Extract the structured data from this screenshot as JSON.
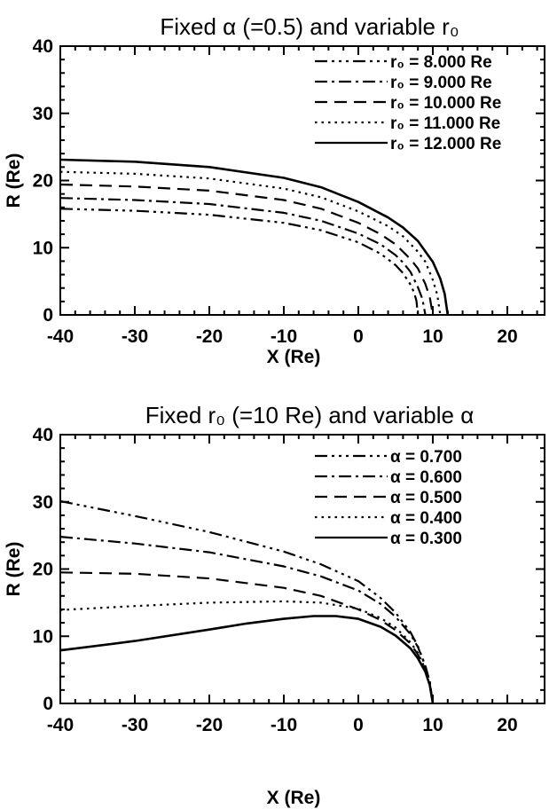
{
  "chart_data": [
    {
      "type": "line",
      "title": "Fixed α (=0.5) and variable r₀",
      "xlabel": "X (Re)",
      "ylabel": "R (Re)",
      "xlim": [
        -40,
        25
      ],
      "ylim": [
        0,
        40
      ],
      "xticks": [
        "-40",
        "-30",
        "-20",
        "-10",
        "0",
        "10",
        "20"
      ],
      "yticks": [
        "0",
        "10",
        "20",
        "30",
        "40"
      ],
      "legend_position": "top-right",
      "series": [
        {
          "name": "r₀ =  8.000 Re",
          "dash": "dash-dot-dot-dot",
          "x": [
            -40,
            -30,
            -20,
            -10,
            -5,
            0,
            3,
            5,
            6,
            7,
            7.5,
            7.8,
            8
          ],
          "y": [
            15.8,
            15.5,
            14.9,
            13.7,
            12.6,
            10.8,
            9.1,
            7.4,
            6.2,
            4.5,
            3.3,
            2.1,
            0
          ]
        },
        {
          "name": "r₀ =  9.000 Re",
          "dash": "dash-dot",
          "x": [
            -40,
            -30,
            -20,
            -10,
            -5,
            0,
            3,
            5,
            6,
            7,
            8,
            8.6,
            9
          ],
          "y": [
            17.4,
            17.1,
            16.5,
            15.2,
            14.0,
            12.1,
            10.5,
            8.9,
            7.8,
            6.4,
            4.1,
            2.4,
            0
          ]
        },
        {
          "name": "r₀ = 10.000 Re",
          "dash": "dashed",
          "x": [
            -40,
            -30,
            -20,
            -10,
            -5,
            0,
            3,
            5,
            7,
            8,
            9,
            9.6,
            10
          ],
          "y": [
            19.4,
            19.1,
            18.5,
            17.1,
            15.8,
            13.7,
            12.0,
            10.5,
            8.3,
            6.9,
            4.6,
            2.6,
            0
          ]
        },
        {
          "name": "r₀ = 11.000 Re",
          "dash": "dotted",
          "x": [
            -40,
            -30,
            -20,
            -10,
            -5,
            0,
            4,
            6,
            8,
            9,
            10,
            10.6,
            11
          ],
          "y": [
            21.3,
            21.0,
            20.3,
            18.8,
            17.5,
            15.4,
            13.2,
            11.7,
            9.4,
            7.9,
            5.2,
            3.0,
            0
          ]
        },
        {
          "name": "r₀ = 12.000 Re",
          "dash": "solid",
          "x": [
            -40,
            -30,
            -20,
            -10,
            -5,
            0,
            4,
            6,
            8,
            10,
            11,
            11.6,
            12
          ],
          "y": [
            23.1,
            22.8,
            22.0,
            20.4,
            19.0,
            16.8,
            14.5,
            13.0,
            11.0,
            7.9,
            5.4,
            3.1,
            0
          ]
        }
      ]
    },
    {
      "type": "line",
      "title": "Fixed r₀ (=10 Re) and variable α",
      "xlabel": "X (Re)",
      "ylabel": "R (Re)",
      "xlim": [
        -40,
        25
      ],
      "ylim": [
        0,
        40
      ],
      "xticks": [
        "-40",
        "-30",
        "-20",
        "-10",
        "0",
        "10",
        "20"
      ],
      "yticks": [
        "0",
        "10",
        "20",
        "30",
        "40"
      ],
      "legend_position": "top-right",
      "series": [
        {
          "name": "α = 0.700",
          "dash": "dash-dot-dot-dot",
          "x": [
            -40,
            -30,
            -20,
            -10,
            -5,
            0,
            3,
            5,
            7,
            8,
            9,
            9.6,
            10
          ],
          "y": [
            30.1,
            27.9,
            25.5,
            22.6,
            20.7,
            18.2,
            15.7,
            13.5,
            10.6,
            8.5,
            5.6,
            3.2,
            0
          ]
        },
        {
          "name": "α = 0.600",
          "dash": "dash-dot",
          "x": [
            -40,
            -30,
            -20,
            -10,
            -5,
            0,
            3,
            5,
            7,
            8,
            9,
            9.6,
            10
          ],
          "y": [
            24.8,
            23.8,
            22.5,
            20.4,
            18.9,
            16.8,
            14.8,
            12.9,
            10.3,
            8.4,
            5.5,
            3.2,
            0
          ]
        },
        {
          "name": "α = 0.500",
          "dash": "dashed",
          "x": [
            -40,
            -30,
            -20,
            -10,
            -5,
            0,
            3,
            5,
            7,
            8,
            9,
            9.6,
            10
          ],
          "y": [
            19.5,
            19.3,
            18.6,
            17.2,
            16.0,
            14.0,
            12.4,
            10.9,
            8.9,
            7.3,
            5.0,
            2.8,
            0
          ]
        },
        {
          "name": "α = 0.400",
          "dash": "dotted",
          "x": [
            -40,
            -30,
            -20,
            -10,
            -5,
            0,
            3,
            5,
            7,
            8,
            9,
            9.6,
            10
          ],
          "y": [
            13.9,
            14.5,
            15.0,
            15.2,
            15.0,
            14.1,
            12.7,
            11.3,
            9.1,
            7.5,
            5.1,
            2.9,
            0
          ]
        },
        {
          "name": "α = 0.300",
          "dash": "solid",
          "x": [
            -40,
            -30,
            -20,
            -15,
            -10,
            -6,
            -3,
            0,
            3,
            5,
            7,
            8,
            9,
            9.6,
            10
          ],
          "y": [
            7.9,
            9.3,
            11.0,
            11.9,
            12.6,
            13.0,
            13.0,
            12.6,
            11.4,
            10.1,
            8.2,
            6.7,
            4.7,
            2.7,
            0
          ]
        }
      ]
    }
  ]
}
